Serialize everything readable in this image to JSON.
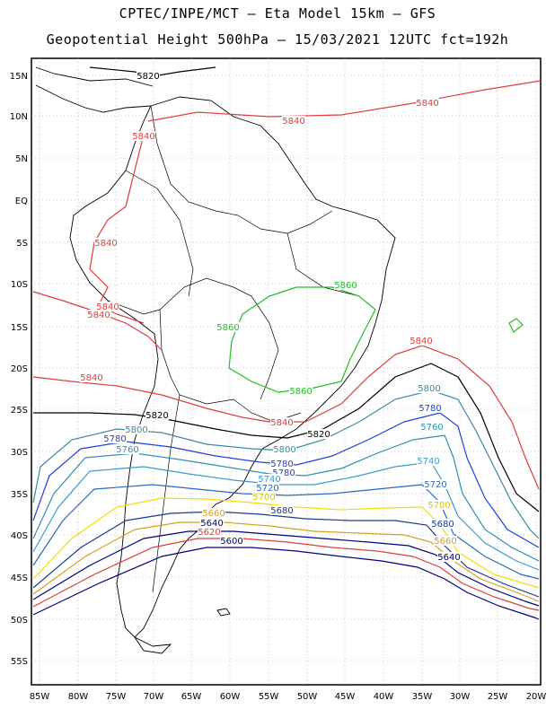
{
  "title_line1": "CPTEC/INPE/MCT –  Eta Model 15km – GFS",
  "title_line2": "Geopotential Height 500hPa – 15/03/2021 12UTC fct=192h",
  "lat_labels": [
    "15N",
    "10N",
    "5N",
    "EQ",
    "5S",
    "10S",
    "15S",
    "20S",
    "25S",
    "30S",
    "35S",
    "40S",
    "45S",
    "50S",
    "55S"
  ],
  "lon_labels": [
    "85W",
    "80W",
    "75W",
    "70W",
    "65W",
    "60W",
    "55W",
    "50W",
    "45W",
    "40W",
    "35W",
    "30W",
    "25W",
    "20W"
  ],
  "contour_colors": {
    "5580": "#000080",
    "5600": "#000080",
    "5620": "#e03c3c",
    "5640": "#e07820",
    "5660": "#d8a020",
    "5680": "#1a3a8a",
    "5700": "#f0f000",
    "5720": "#2a6ab8",
    "5740": "#3a9ad0",
    "5760": "#3090b0",
    "5780": "#2040e0",
    "5800": "#3a8aa0",
    "5820": "#000000",
    "5840": "#e03c3c",
    "5860": "#20c020"
  },
  "contour_labels": [
    {
      "text": "5820",
      "color": "#000000"
    },
    {
      "text": "5840",
      "color": "#e03c3c"
    },
    {
      "text": "5840",
      "color": "#e03c3c"
    },
    {
      "text": "5840",
      "color": "#e03c3c"
    },
    {
      "text": "5840",
      "color": "#e03c3c"
    },
    {
      "text": "5840",
      "color": "#e03c3c"
    },
    {
      "text": "5840",
      "color": "#e03c3c"
    },
    {
      "text": "5840",
      "color": "#e03c3c"
    },
    {
      "text": "5840",
      "color": "#e03c3c"
    },
    {
      "text": "5840",
      "color": "#e03c3c"
    },
    {
      "text": "5860",
      "color": "#20c020"
    },
    {
      "text": "5860",
      "color": "#20c020"
    },
    {
      "text": "5860",
      "color": "#20c020"
    },
    {
      "text": "5820",
      "color": "#000000"
    },
    {
      "text": "5820",
      "color": "#000000"
    },
    {
      "text": "5800",
      "color": "#3a8aa0"
    },
    {
      "text": "5800",
      "color": "#3a8aa0"
    },
    {
      "text": "5800",
      "color": "#3a8aa0"
    },
    {
      "text": "5780",
      "color": "#2040e0"
    },
    {
      "text": "5780",
      "color": "#2040e0"
    },
    {
      "text": "5780",
      "color": "#2040e0"
    },
    {
      "text": "5780",
      "color": "#2040e0"
    },
    {
      "text": "5760",
      "color": "#3090b0"
    },
    {
      "text": "5760",
      "color": "#3090b0"
    },
    {
      "text": "5740",
      "color": "#3a9ad0"
    },
    {
      "text": "5740",
      "color": "#3a9ad0"
    },
    {
      "text": "5720",
      "color": "#2a6ab8"
    },
    {
      "text": "5720",
      "color": "#2a6ab8"
    },
    {
      "text": "5700",
      "color": "#d8c800"
    },
    {
      "text": "5700",
      "color": "#d8c800"
    },
    {
      "text": "5680",
      "color": "#1a3a8a"
    },
    {
      "text": "5680",
      "color": "#1a3a8a"
    },
    {
      "text": "5660",
      "color": "#d8a020"
    },
    {
      "text": "5660",
      "color": "#d8a020"
    },
    {
      "text": "5640",
      "color": "#000080"
    },
    {
      "text": "5640",
      "color": "#000080"
    },
    {
      "text": "5620",
      "color": "#e03c3c"
    },
    {
      "text": "5600",
      "color": "#000080"
    }
  ]
}
